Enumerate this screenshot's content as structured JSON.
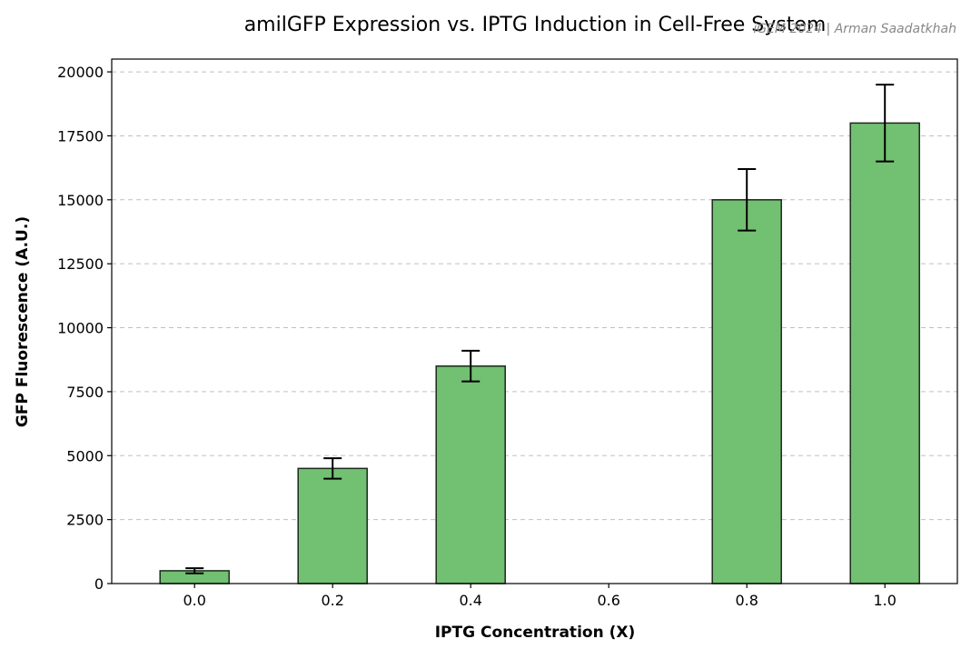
{
  "chart_data": {
    "type": "bar",
    "title": "amilGFP Expression vs. IPTG Induction in Cell-Free System",
    "watermark": "iGEM 2024 | Arman Saadatkhah",
    "xlabel": "IPTG Concentration (X)",
    "ylabel": "GFP Fluorescence (A.U.)",
    "xlim": [
      -0.12,
      1.105
    ],
    "ylim": [
      0,
      20500
    ],
    "xticks": [
      0.0,
      0.2,
      0.4,
      0.6,
      0.8,
      1.0
    ],
    "xtick_labels": [
      "0.0",
      "0.2",
      "0.4",
      "0.6",
      "0.8",
      "1.0"
    ],
    "yticks": [
      0,
      2500,
      5000,
      7500,
      10000,
      12500,
      15000,
      17500,
      20000
    ],
    "ytick_labels": [
      "0",
      "2500",
      "5000",
      "7500",
      "10000",
      "12500",
      "15000",
      "17500",
      "20000"
    ],
    "bar_width": 0.1,
    "grid": "y-dashed",
    "bar_color": "#72c072",
    "x": [
      0.0,
      0.2,
      0.4,
      0.8,
      1.0
    ],
    "values": [
      500,
      4500,
      8500,
      15000,
      18000
    ],
    "errors": [
      100,
      400,
      600,
      1200,
      1500
    ]
  }
}
